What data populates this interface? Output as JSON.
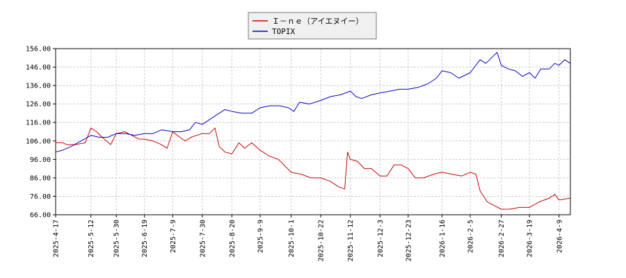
{
  "chart_data": {
    "type": "line",
    "title": "",
    "xlabel": "",
    "ylabel": "",
    "ylim": [
      66,
      156
    ],
    "yticks": [
      "66.00",
      "76.00",
      "86.00",
      "96.00",
      "106.00",
      "116.00",
      "126.00",
      "136.00",
      "146.00",
      "156.00"
    ],
    "xlim": [
      "2025-04-17",
      "2026-04-17"
    ],
    "xticks": [
      "2025-4-17",
      "2025-5-12",
      "2025-5-30",
      "2025-6-19",
      "2025-7-9",
      "2025-7-30",
      "2025-8-20",
      "2025-9-9",
      "2025-10-1",
      "2025-10-22",
      "2025-11-12",
      "2025-12-3",
      "2025-12-23",
      "2026-1-16",
      "2026-2-5",
      "2026-2-27",
      "2026-3-19",
      "2026-4-9"
    ],
    "grid": true,
    "legend_position": "top-center",
    "series": [
      {
        "name": "Ｉ－ｎｅ（アイエヌイー）",
        "color": "#cc0000",
        "points": [
          [
            "2025-04-17",
            105
          ],
          [
            "2025-04-22",
            105
          ],
          [
            "2025-04-25",
            104
          ],
          [
            "2025-05-01",
            104
          ],
          [
            "2025-05-08",
            105
          ],
          [
            "2025-05-12",
            113
          ],
          [
            "2025-05-16",
            111
          ],
          [
            "2025-05-20",
            108
          ],
          [
            "2025-05-26",
            104
          ],
          [
            "2025-05-30",
            110
          ],
          [
            "2025-06-05",
            111
          ],
          [
            "2025-06-10",
            109
          ],
          [
            "2025-06-15",
            107
          ],
          [
            "2025-06-19",
            107
          ],
          [
            "2025-06-25",
            106
          ],
          [
            "2025-07-01",
            104
          ],
          [
            "2025-07-05",
            102
          ],
          [
            "2025-07-09",
            111
          ],
          [
            "2025-07-14",
            108
          ],
          [
            "2025-07-18",
            106
          ],
          [
            "2025-07-22",
            108
          ],
          [
            "2025-07-26",
            109
          ],
          [
            "2025-07-30",
            110
          ],
          [
            "2025-08-04",
            110
          ],
          [
            "2025-08-08",
            113
          ],
          [
            "2025-08-11",
            103
          ],
          [
            "2025-08-15",
            100
          ],
          [
            "2025-08-20",
            99
          ],
          [
            "2025-08-25",
            105
          ],
          [
            "2025-08-29",
            102
          ],
          [
            "2025-09-03",
            105
          ],
          [
            "2025-09-09",
            101
          ],
          [
            "2025-09-15",
            98
          ],
          [
            "2025-09-22",
            96
          ],
          [
            "2025-10-01",
            89
          ],
          [
            "2025-10-08",
            88
          ],
          [
            "2025-10-15",
            86
          ],
          [
            "2025-10-22",
            86
          ],
          [
            "2025-10-29",
            84
          ],
          [
            "2025-11-04",
            81
          ],
          [
            "2025-11-08",
            80
          ],
          [
            "2025-11-10",
            100
          ],
          [
            "2025-11-12",
            96
          ],
          [
            "2025-11-17",
            95
          ],
          [
            "2025-11-22",
            91
          ],
          [
            "2025-11-27",
            91
          ],
          [
            "2025-12-03",
            87
          ],
          [
            "2025-12-08",
            87
          ],
          [
            "2025-12-13",
            93
          ],
          [
            "2025-12-18",
            93
          ],
          [
            "2025-12-23",
            91
          ],
          [
            "2025-12-28",
            86
          ],
          [
            "2026-01-03",
            86
          ],
          [
            "2026-01-10",
            88
          ],
          [
            "2026-01-16",
            89
          ],
          [
            "2026-01-23",
            88
          ],
          [
            "2026-01-30",
            87
          ],
          [
            "2026-02-05",
            89
          ],
          [
            "2026-02-09",
            88
          ],
          [
            "2026-02-12",
            79
          ],
          [
            "2026-02-17",
            73
          ],
          [
            "2026-02-22",
            71
          ],
          [
            "2026-02-27",
            69
          ],
          [
            "2026-03-05",
            69
          ],
          [
            "2026-03-12",
            70
          ],
          [
            "2026-03-19",
            70
          ],
          [
            "2026-03-26",
            73
          ],
          [
            "2026-04-02",
            75
          ],
          [
            "2026-04-06",
            77
          ],
          [
            "2026-04-09",
            74
          ],
          [
            "2026-04-17",
            75
          ]
        ]
      },
      {
        "name": "TOPIX",
        "color": "#0000cc",
        "points": [
          [
            "2025-04-17",
            100
          ],
          [
            "2025-04-22",
            101
          ],
          [
            "2025-04-28",
            103
          ],
          [
            "2025-05-05",
            106
          ],
          [
            "2025-05-12",
            109
          ],
          [
            "2025-05-18",
            108
          ],
          [
            "2025-05-24",
            108
          ],
          [
            "2025-05-30",
            110
          ],
          [
            "2025-06-06",
            110
          ],
          [
            "2025-06-12",
            109
          ],
          [
            "2025-06-19",
            110
          ],
          [
            "2025-06-25",
            110
          ],
          [
            "2025-07-01",
            112
          ],
          [
            "2025-07-09",
            111
          ],
          [
            "2025-07-15",
            111
          ],
          [
            "2025-07-21",
            112
          ],
          [
            "2025-07-25",
            116
          ],
          [
            "2025-07-30",
            115
          ],
          [
            "2025-08-05",
            118
          ],
          [
            "2025-08-11",
            121
          ],
          [
            "2025-08-15",
            123
          ],
          [
            "2025-08-20",
            122
          ],
          [
            "2025-08-27",
            121
          ],
          [
            "2025-09-03",
            121
          ],
          [
            "2025-09-09",
            124
          ],
          [
            "2025-09-16",
            125
          ],
          [
            "2025-09-23",
            125
          ],
          [
            "2025-09-29",
            124
          ],
          [
            "2025-10-03",
            122
          ],
          [
            "2025-10-07",
            127
          ],
          [
            "2025-10-14",
            126
          ],
          [
            "2025-10-22",
            128
          ],
          [
            "2025-10-29",
            130
          ],
          [
            "2025-11-05",
            131
          ],
          [
            "2025-11-12",
            133
          ],
          [
            "2025-11-16",
            130
          ],
          [
            "2025-11-20",
            129
          ],
          [
            "2025-11-27",
            131
          ],
          [
            "2025-12-03",
            132
          ],
          [
            "2025-12-10",
            133
          ],
          [
            "2025-12-17",
            134
          ],
          [
            "2025-12-23",
            134
          ],
          [
            "2025-12-30",
            135
          ],
          [
            "2026-01-06",
            137
          ],
          [
            "2026-01-12",
            140
          ],
          [
            "2026-01-16",
            144
          ],
          [
            "2026-01-22",
            143
          ],
          [
            "2026-01-28",
            140
          ],
          [
            "2026-02-05",
            143
          ],
          [
            "2026-02-12",
            150
          ],
          [
            "2026-02-16",
            148
          ],
          [
            "2026-02-20",
            151
          ],
          [
            "2026-02-24",
            154
          ],
          [
            "2026-02-27",
            147
          ],
          [
            "2026-03-04",
            145
          ],
          [
            "2026-03-09",
            144
          ],
          [
            "2026-03-14",
            141
          ],
          [
            "2026-03-19",
            143
          ],
          [
            "2026-03-23",
            140
          ],
          [
            "2026-03-27",
            145
          ],
          [
            "2026-04-02",
            145
          ],
          [
            "2026-04-06",
            148
          ],
          [
            "2026-04-09",
            147
          ],
          [
            "2026-04-13",
            150
          ],
          [
            "2026-04-17",
            148
          ]
        ]
      }
    ]
  }
}
